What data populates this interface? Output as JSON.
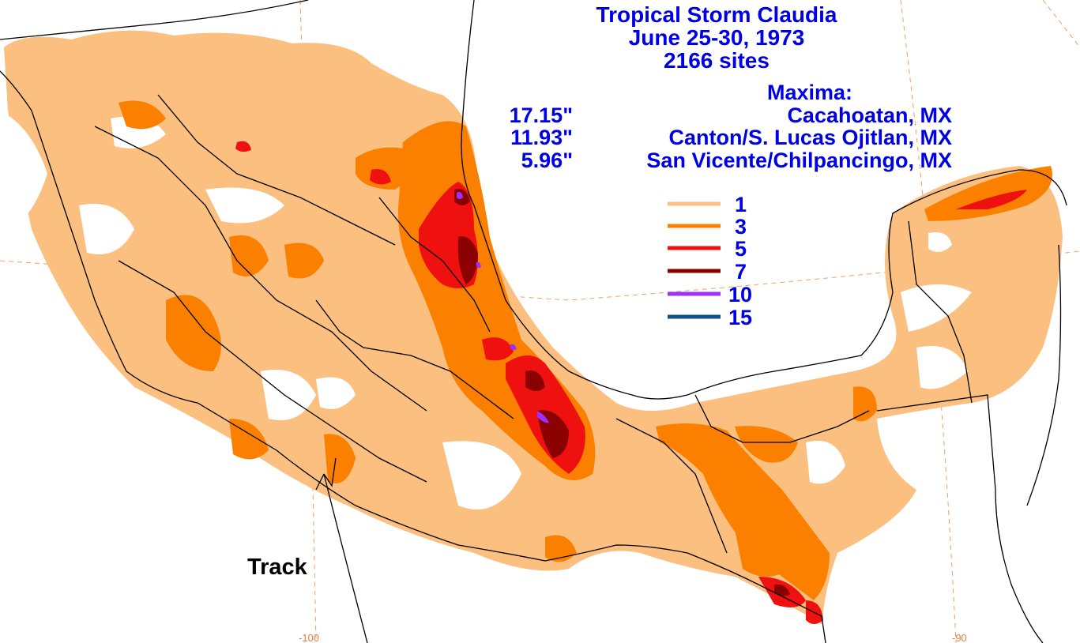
{
  "title": {
    "line1": "Tropical Storm Claudia",
    "line2": "June 25-30, 1973",
    "line3": "2166 sites"
  },
  "maxima": {
    "heading": "Maxima:",
    "rows": [
      {
        "amount": "17.15\"",
        "site": "Cacahoatan, MX"
      },
      {
        "amount": "11.93\"",
        "site": "Canton/S. Lucas Ojitlan, MX"
      },
      {
        "amount": "5.96\"",
        "site": "San Vicente/Chilpancingo, MX"
      }
    ]
  },
  "legend": {
    "entries": [
      {
        "label": "1",
        "color": "#fbbf80"
      },
      {
        "label": "3",
        "color": "#fb8000"
      },
      {
        "label": "5",
        "color": "#ef1010"
      },
      {
        "label": "7",
        "color": "#8b0000"
      },
      {
        "label": "10",
        "color": "#9b30ff"
      },
      {
        "label": "15",
        "color": "#10508a"
      }
    ]
  },
  "track_label": "Track",
  "graticule": {
    "lon_left": "-100",
    "lon_right": "-90"
  },
  "colors": {
    "boundary": "#000000",
    "graticule": "#f0a060",
    "text": "#0000e6"
  }
}
